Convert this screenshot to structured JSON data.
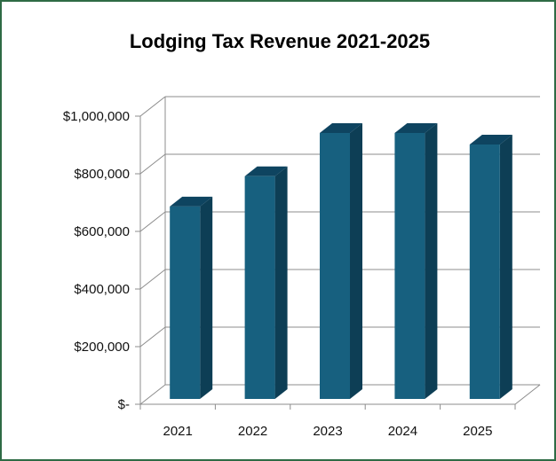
{
  "chart_data": {
    "type": "bar",
    "title": "Lodging Tax Revenue 2021-2025",
    "xlabel": "",
    "ylabel": "",
    "categories": [
      "2021",
      "2022",
      "2023",
      "2024",
      "2025"
    ],
    "values": [
      705000,
      810000,
      960000,
      960000,
      920000
    ],
    "ylim": [
      0,
      1000000
    ],
    "yticks": [
      0,
      200000,
      400000,
      600000,
      800000,
      1000000
    ],
    "ytick_labels": [
      "$-",
      "$200,000",
      "$400,000",
      "$600,000",
      "$800,000",
      "$1,000,000"
    ],
    "grid": true,
    "legend": "none",
    "style": "3d-column",
    "colors": {
      "bar_front": "#17607f",
      "bar_side": "#0d3e55",
      "bar_top": "#0e4460",
      "grid": "#8c8c8c",
      "border": "#2e6b45"
    }
  }
}
